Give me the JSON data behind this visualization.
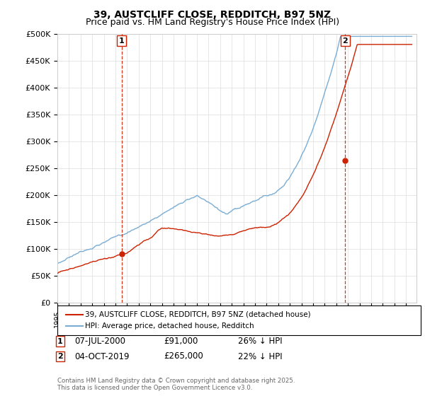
{
  "title": "39, AUSTCLIFF CLOSE, REDDITCH, B97 5NZ",
  "subtitle": "Price paid vs. HM Land Registry's House Price Index (HPI)",
  "hpi_color": "#7aadd4",
  "price_color": "#cc2200",
  "vline_color": "#cc2200",
  "ylim": [
    0,
    500000
  ],
  "yticks": [
    0,
    50000,
    100000,
    150000,
    200000,
    250000,
    300000,
    350000,
    400000,
    450000,
    500000
  ],
  "ytick_labels": [
    "£0",
    "£50K",
    "£100K",
    "£150K",
    "£200K",
    "£250K",
    "£300K",
    "£350K",
    "£400K",
    "£450K",
    "£500K"
  ],
  "purchase1_year": 2000.52,
  "purchase1_price": 91000,
  "purchase2_year": 2019.76,
  "purchase2_price": 265000,
  "legend_line1": "39, AUSTCLIFF CLOSE, REDDITCH, B97 5NZ (detached house)",
  "legend_line2": "HPI: Average price, detached house, Redditch",
  "purchase1_date": "07-JUL-2000",
  "purchase1_amount": "£91,000",
  "purchase1_hpi": "26% ↓ HPI",
  "purchase2_date": "04-OCT-2019",
  "purchase2_amount": "£265,000",
  "purchase2_hpi": "22% ↓ HPI",
  "footer": "Contains HM Land Registry data © Crown copyright and database right 2025.\nThis data is licensed under the Open Government Licence v3.0."
}
